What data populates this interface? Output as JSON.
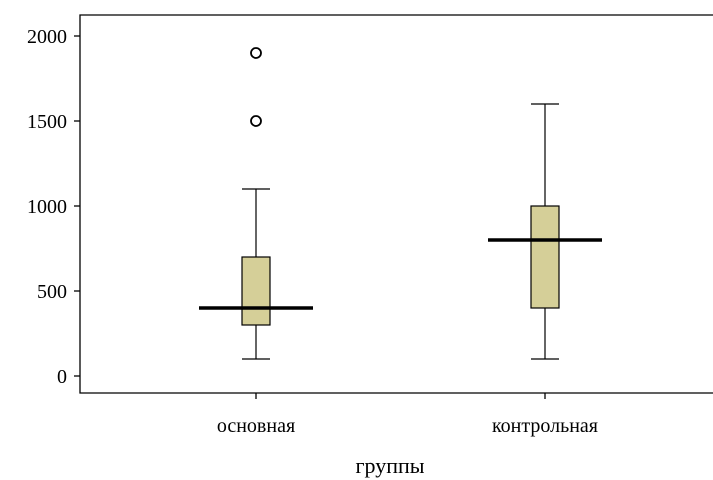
{
  "chart_data": {
    "type": "box",
    "xlabel": "группы",
    "ylabel": "",
    "ylim": [
      -100,
      2130
    ],
    "yticks": [
      0,
      500,
      1000,
      1500,
      2000
    ],
    "ytick_labels": [
      "0",
      "500",
      "1000",
      "1500",
      "2000"
    ],
    "box_fill": "#d5cf98",
    "groups": [
      {
        "label": "основная",
        "whisker_low": 100,
        "q1": 300,
        "median": 400,
        "q3": 700,
        "whisker_high": 1100,
        "outliers": [
          1500,
          1900
        ]
      },
      {
        "label": "контрольная",
        "whisker_low": 100,
        "q1": 400,
        "median": 800,
        "q3": 1000,
        "whisker_high": 1600,
        "outliers": []
      }
    ]
  }
}
